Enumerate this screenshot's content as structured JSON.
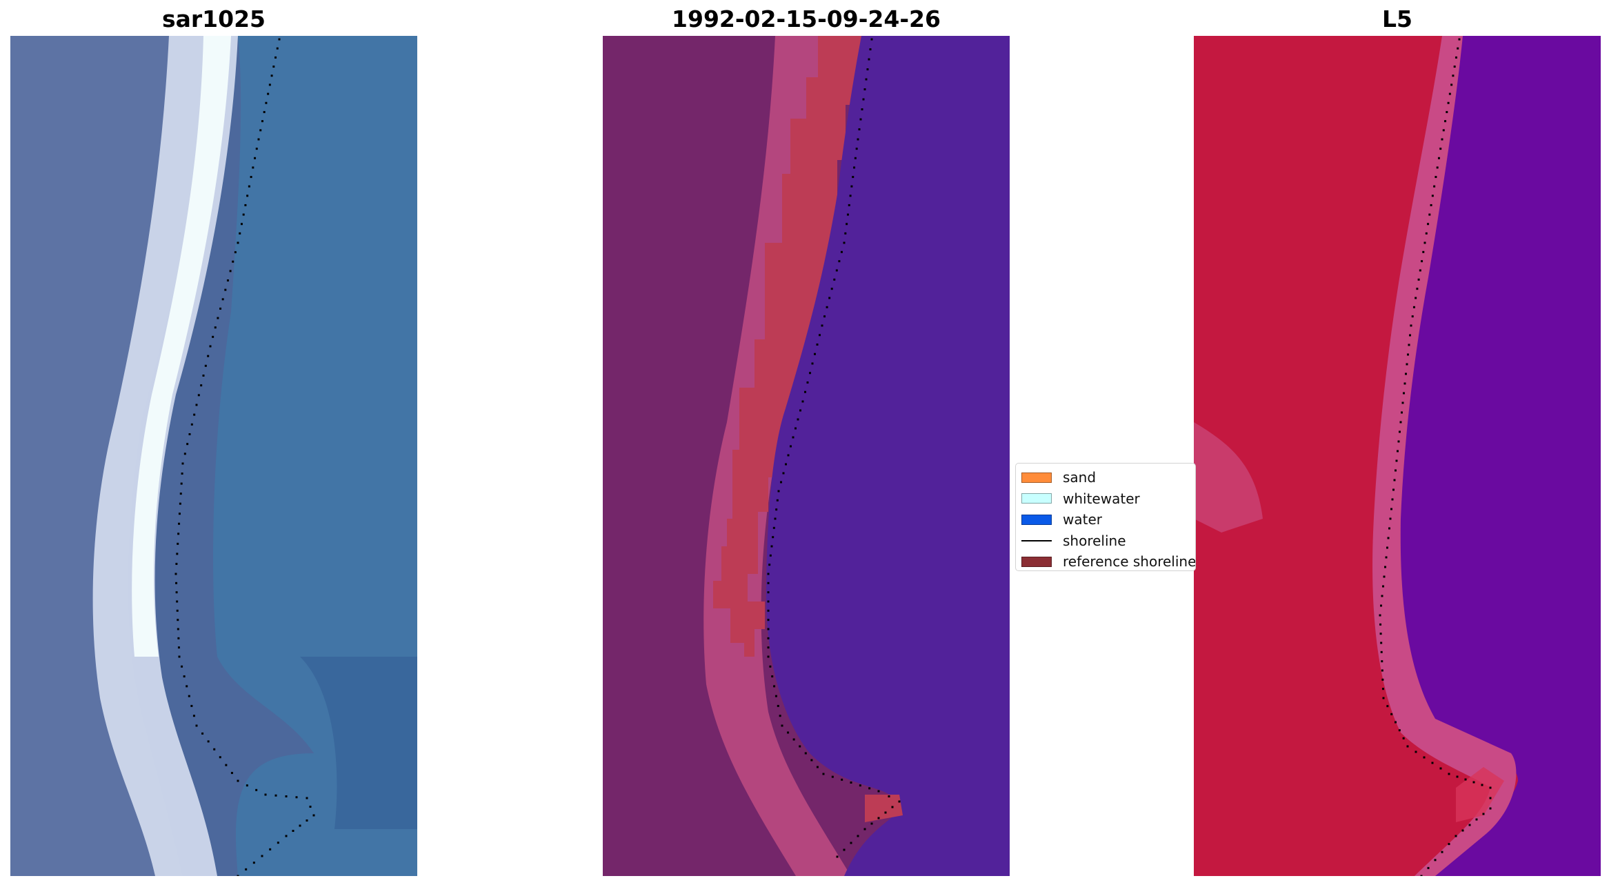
{
  "panels": [
    {
      "title": "sar1025",
      "colors": {
        "land": "#5d73a4",
        "shore": "#e8f3f8",
        "sea": "#3a6e9f"
      }
    },
    {
      "title": "1992-02-15-09-24-26",
      "colors": {
        "land": "#74266a",
        "shore": "#c04a8a",
        "sand": "#bd3c55",
        "sea": "#52229a"
      }
    },
    {
      "title": "L5",
      "colors": {
        "land": "#c41840",
        "shore": "#c94a86",
        "sea": "#6a0aa0"
      }
    }
  ],
  "legend": {
    "items": [
      {
        "label": "sand",
        "color": "#ff8c3a",
        "kind": "patch"
      },
      {
        "label": "whitewater",
        "color": "#c8ffff",
        "kind": "patch"
      },
      {
        "label": "water",
        "color": "#0a5ae8",
        "kind": "patch"
      },
      {
        "label": "shoreline",
        "color": "#000000",
        "kind": "line"
      },
      {
        "label": "reference shoreline",
        "color": "#8b2e34",
        "kind": "patch"
      }
    ]
  }
}
